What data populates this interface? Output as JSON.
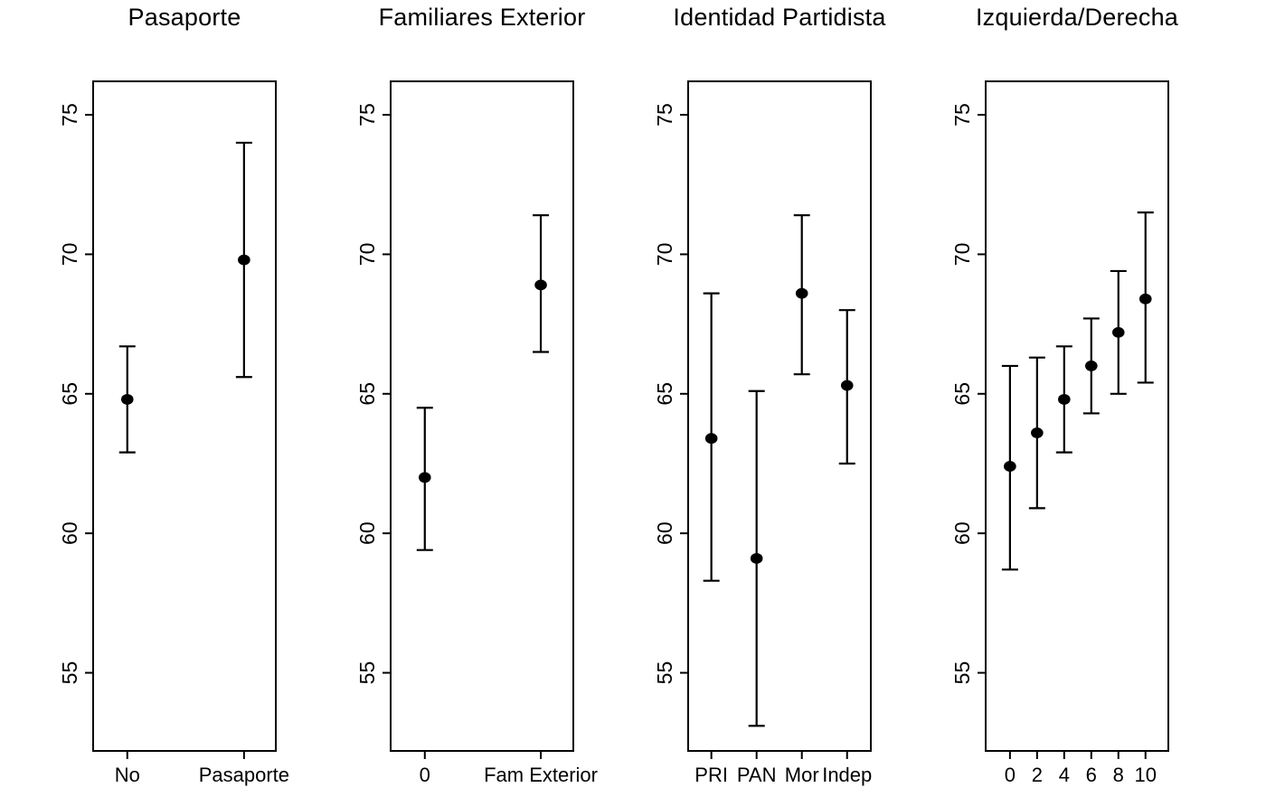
{
  "figure": {
    "background_color": "#ffffff",
    "foreground_color": "#000000",
    "description": "Four-panel dot-and-whisker plot of point estimates with confidence intervals"
  },
  "chart_data": [
    {
      "type": "scatter",
      "title": "Pasaporte",
      "xlabel": "",
      "ylabel": "",
      "marker": "filled-circle",
      "error_bars": true,
      "grid": false,
      "legend": false,
      "yticks": [
        55,
        60,
        65,
        70,
        75
      ],
      "ylim": [
        52.2,
        76.2
      ],
      "x_fraction_range": [
        0.187,
        0.826
      ],
      "categories": [
        "No",
        "Pasaporte"
      ],
      "points": [
        {
          "label": "No",
          "estimate": 64.8,
          "ci_low": 62.9,
          "ci_high": 66.7
        },
        {
          "label": "Pasaporte",
          "estimate": 69.8,
          "ci_low": 65.6,
          "ci_high": 74.0
        }
      ]
    },
    {
      "type": "scatter",
      "title": "Familiares Exterior",
      "xlabel": "",
      "ylabel": "",
      "marker": "filled-circle",
      "error_bars": true,
      "grid": false,
      "legend": false,
      "yticks": [
        55,
        60,
        65,
        70,
        75
      ],
      "ylim": [
        52.2,
        76.2
      ],
      "x_fraction_range": [
        0.187,
        0.822
      ],
      "categories": [
        "0",
        "Fam Exterior"
      ],
      "points": [
        {
          "label": "0",
          "estimate": 62.0,
          "ci_low": 59.4,
          "ci_high": 64.5
        },
        {
          "label": "Fam Exterior",
          "estimate": 68.9,
          "ci_low": 66.5,
          "ci_high": 71.4
        }
      ]
    },
    {
      "type": "scatter",
      "title": "Identidad Partidista",
      "xlabel": "",
      "ylabel": "",
      "marker": "filled-circle",
      "error_bars": true,
      "grid": false,
      "legend": false,
      "yticks": [
        55,
        60,
        65,
        70,
        75
      ],
      "ylim": [
        52.2,
        76.2
      ],
      "x_fraction_range": [
        0.127,
        0.87
      ],
      "categories": [
        "PRI",
        "PAN",
        "Mor",
        "Indep"
      ],
      "points": [
        {
          "label": "PRI",
          "estimate": 63.4,
          "ci_low": 58.3,
          "ci_high": 68.6
        },
        {
          "label": "PAN",
          "estimate": 59.1,
          "ci_low": 53.1,
          "ci_high": 65.1
        },
        {
          "label": "Mor",
          "estimate": 68.6,
          "ci_low": 65.7,
          "ci_high": 71.4
        },
        {
          "label": "Indep",
          "estimate": 65.3,
          "ci_low": 62.5,
          "ci_high": 68.0
        }
      ]
    },
    {
      "type": "scatter",
      "title": "Izquierda/Derecha",
      "xlabel": "",
      "ylabel": "",
      "marker": "filled-circle",
      "error_bars": true,
      "grid": false,
      "legend": false,
      "yticks": [
        55,
        60,
        65,
        70,
        75
      ],
      "ylim": [
        52.2,
        76.2
      ],
      "x_fraction_range": [
        0.133,
        0.875
      ],
      "categories": [
        "0",
        "2",
        "4",
        "6",
        "8",
        "10"
      ],
      "points": [
        {
          "label": "0",
          "estimate": 62.4,
          "ci_low": 58.7,
          "ci_high": 66.0
        },
        {
          "label": "2",
          "estimate": 63.6,
          "ci_low": 60.9,
          "ci_high": 66.3
        },
        {
          "label": "4",
          "estimate": 64.8,
          "ci_low": 62.9,
          "ci_high": 66.7
        },
        {
          "label": "6",
          "estimate": 66.0,
          "ci_low": 64.3,
          "ci_high": 67.7
        },
        {
          "label": "8",
          "estimate": 67.2,
          "ci_low": 65.0,
          "ci_high": 69.4
        },
        {
          "label": "10",
          "estimate": 68.4,
          "ci_low": 65.4,
          "ci_high": 71.5
        }
      ]
    }
  ]
}
